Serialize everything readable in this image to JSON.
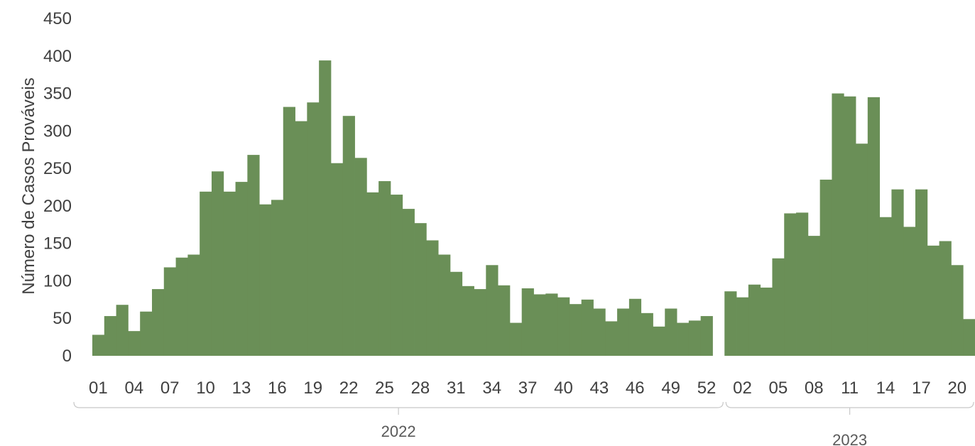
{
  "chart_data": {
    "type": "bar",
    "ylabel": "Número de Casos Prováveis",
    "ylim": [
      0,
      450
    ],
    "yticks": [
      0,
      50,
      100,
      150,
      200,
      250,
      300,
      350,
      400,
      450
    ],
    "bar_color": "#6a8f57",
    "grid": false,
    "groups": [
      {
        "label": "2022",
        "weeks": [
          "01",
          "02",
          "03",
          "04",
          "05",
          "06",
          "07",
          "08",
          "09",
          "10",
          "11",
          "12",
          "13",
          "14",
          "15",
          "16",
          "17",
          "18",
          "19",
          "20",
          "21",
          "22",
          "23",
          "24",
          "25",
          "26",
          "27",
          "28",
          "29",
          "30",
          "31",
          "32",
          "33",
          "34",
          "35",
          "36",
          "37",
          "38",
          "39",
          "40",
          "41",
          "42",
          "43",
          "44",
          "45",
          "46",
          "47",
          "48",
          "49",
          "50",
          "51",
          "52",
          "53"
        ],
        "tick_labels": [
          "01",
          "04",
          "07",
          "10",
          "13",
          "16",
          "19",
          "22",
          "25",
          "28",
          "31",
          "34",
          "37",
          "40",
          "43",
          "46",
          "49",
          "52"
        ],
        "values": [
          28,
          53,
          68,
          33,
          59,
          89,
          118,
          131,
          135,
          219,
          246,
          219,
          232,
          268,
          202,
          208,
          332,
          313,
          338,
          394,
          257,
          320,
          264,
          218,
          233,
          215,
          196,
          177,
          154,
          135,
          112,
          93,
          89,
          121,
          94,
          44,
          90,
          82,
          83,
          78,
          69,
          75,
          63,
          46,
          63,
          76,
          57,
          39,
          63,
          44,
          47,
          53,
          0
        ]
      },
      {
        "label": "2023",
        "weeks": [
          "01",
          "02",
          "03",
          "04",
          "05",
          "06",
          "07",
          "08",
          "09",
          "10",
          "11",
          "12",
          "13",
          "14",
          "15",
          "16",
          "17",
          "18",
          "19",
          "20",
          "21"
        ],
        "tick_labels": [
          "02",
          "05",
          "08",
          "11",
          "14",
          "17",
          "20"
        ],
        "values": [
          86,
          78,
          95,
          91,
          130,
          190,
          191,
          160,
          235,
          350,
          346,
          283,
          345,
          185,
          222,
          172,
          222,
          147,
          153,
          121,
          49
        ]
      }
    ]
  }
}
